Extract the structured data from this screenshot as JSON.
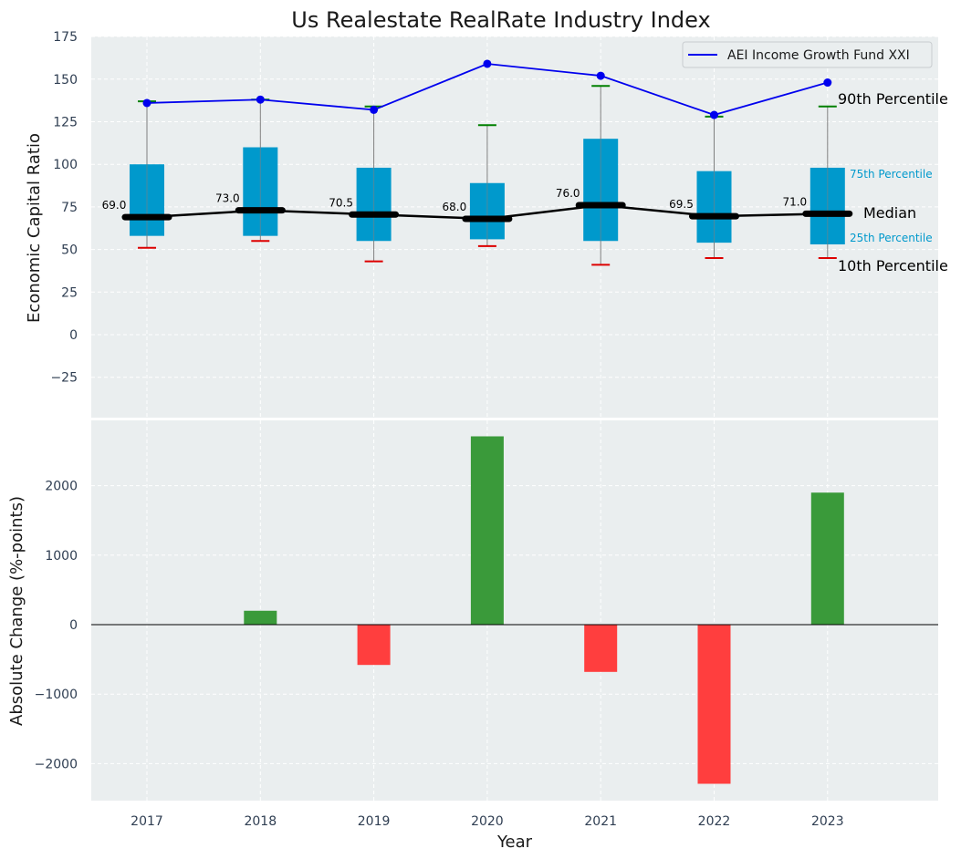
{
  "chart_data": [
    {
      "type": "box",
      "title": "Us Realestate RealRate Industry Index",
      "ylabel": "Economic Capital Ratio",
      "xlabel": "",
      "ylim": [
        -50,
        175
      ],
      "yticks": [
        -25,
        0,
        25,
        50,
        75,
        100,
        125,
        150,
        175
      ],
      "grid": true,
      "categories": [
        "2017",
        "2018",
        "2019",
        "2020",
        "2021",
        "2022",
        "2023"
      ],
      "p10": [
        51,
        55,
        43,
        52,
        41,
        45,
        45
      ],
      "p25": [
        58,
        58,
        55,
        56,
        55,
        54,
        53
      ],
      "median": [
        69.0,
        73.0,
        70.5,
        68.0,
        76.0,
        69.5,
        71.0
      ],
      "median_labels": [
        "69.0",
        "73.0",
        "70.5",
        "68.0",
        "76.0",
        "69.5",
        "71.0"
      ],
      "p75": [
        100,
        110,
        98,
        89,
        115,
        96,
        98
      ],
      "p90": [
        137,
        138,
        134,
        123,
        146,
        128,
        134
      ],
      "series": [
        {
          "name": "AEI Income Growth Fund XXI",
          "values": [
            136,
            138,
            132,
            159,
            152,
            129,
            148
          ],
          "color": "#0000ee"
        }
      ],
      "legend_position": "top-right",
      "annotations": {
        "p90": "90th Percentile",
        "p75": "75th Percentile",
        "median": "Median",
        "p25": "25th Percentile",
        "p10": "10th Percentile"
      },
      "colors": {
        "box": "#0099cc",
        "median": "#000000",
        "p90_cap": "#008000",
        "p10_cap": "#dd0000",
        "whisker": "#808080",
        "background": "#eaeeef"
      }
    },
    {
      "type": "bar",
      "title": "",
      "xlabel": "Year",
      "ylabel": "Absolute Change (%-points)",
      "ylim": [
        -2550,
        3000
      ],
      "yticks": [
        -2000,
        -1000,
        0,
        1000,
        2000
      ],
      "grid": true,
      "categories": [
        "2017",
        "2018",
        "2019",
        "2020",
        "2021",
        "2022",
        "2023"
      ],
      "values": [
        0,
        200,
        -580,
        2710,
        -680,
        -2290,
        1900
      ],
      "colors": {
        "positive": "#3a9a3a",
        "negative": "#ff3e3e"
      }
    }
  ]
}
